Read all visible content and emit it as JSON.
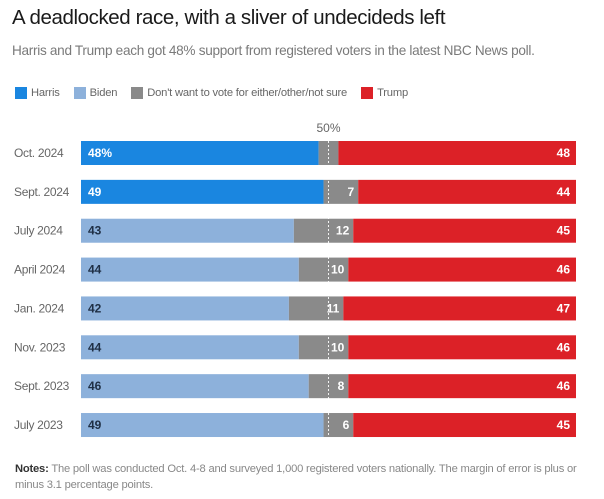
{
  "header": {
    "title": "A deadlocked race, with a sliver of undecideds left",
    "subtitle": "Harris and Trump each got 48% support from registered voters in the latest NBC News poll."
  },
  "legend": [
    {
      "label": "Harris",
      "color": "#1a86e0"
    },
    {
      "label": "Biden",
      "color": "#8db1db"
    },
    {
      "label": "Don't want to vote for either/other/not sure",
      "color": "#8a8a8a"
    },
    {
      "label": "Trump",
      "color": "#dc2127"
    }
  ],
  "colors": {
    "harris": "#1a86e0",
    "biden": "#8db1db",
    "other": "#8a8a8a",
    "trump": "#dc2127"
  },
  "chart_data": {
    "type": "bar",
    "orientation": "horizontal",
    "stacked": true,
    "reference_line": {
      "value": 50,
      "label": "50%"
    },
    "xlim": [
      0,
      100
    ],
    "categories": [
      "Oct. 2024",
      "Sept. 2024",
      "July 2024",
      "April 2024",
      "Jan. 2024",
      "Nov. 2023",
      "Sept. 2023",
      "July 2023"
    ],
    "series": [
      {
        "name": "Harris",
        "values": [
          48,
          49,
          null,
          null,
          null,
          null,
          null,
          null
        ]
      },
      {
        "name": "Biden",
        "values": [
          null,
          null,
          43,
          44,
          42,
          44,
          46,
          49
        ]
      },
      {
        "name": "Don't want to vote for either/other/not sure",
        "values": [
          4,
          7,
          12,
          10,
          11,
          10,
          8,
          6
        ]
      },
      {
        "name": "Trump",
        "values": [
          48,
          44,
          45,
          46,
          47,
          46,
          46,
          45
        ]
      }
    ],
    "data_labels": {
      "first": [
        "48%",
        "49",
        "43",
        "44",
        "42",
        "44",
        "46",
        "49"
      ],
      "other": [
        "",
        "7",
        "12",
        "10",
        "11",
        "10",
        "8",
        "6"
      ],
      "trump": [
        "48",
        "44",
        "45",
        "46",
        "47",
        "46",
        "46",
        "45"
      ]
    }
  },
  "notes": {
    "label": "Notes:",
    "text": " The poll was conducted Oct. 4-8 and surveyed 1,000 registered voters nationally. The margin of error is plus or minus 3.1 percentage points."
  }
}
